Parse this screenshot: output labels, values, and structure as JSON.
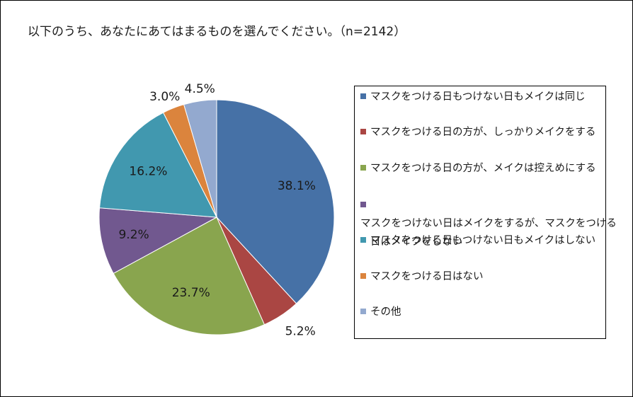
{
  "title": "以下のうち、あなたにあてはまるものを選んでください。（n=2142）",
  "chart_data": {
    "type": "pie",
    "title": "以下のうち、あなたにあてはまるものを選んでください。（n=2142）",
    "categories": [
      "マスクをつける日もつけない日もメイクは同じ",
      "マスクをつける日の方が、しっかりメイクをする",
      "マスクをつける日の方が、メイクは控えめにする",
      "マスクをつけない日はメイクをするが、マスクをつける日はメイクをしない",
      "マスクをつける日もつけない日もメイクはしない",
      "マスクをつける日はない",
      "その他"
    ],
    "values": [
      38.1,
      5.2,
      23.7,
      9.2,
      16.2,
      3.0,
      4.5
    ],
    "labels": [
      "38.1%",
      "5.2%",
      "23.7%",
      "9.2%",
      "16.2%",
      "3.0%",
      "4.5%"
    ],
    "colors": [
      "#4671A6",
      "#AA4643",
      "#89A54E",
      "#71588F",
      "#4198AF",
      "#DB843D",
      "#93A9CF"
    ],
    "legend_position": "right"
  },
  "legend": {
    "items": [
      {
        "lines": [
          "マスクをつける日もつけない日もメイクは同じ"
        ]
      },
      {
        "lines": [
          "マスクをつける日の方が、しっかりメイクをする"
        ]
      },
      {
        "lines": [
          "マスクをつける日の方が、メイクは控えめにする"
        ]
      },
      {
        "lines": [
          "マスクをつけない日はメイクをするが、マスクをつける",
          "日はメイクをしない"
        ]
      },
      {
        "lines": [
          "マスクをつける日もつけない日もメイクはしない"
        ]
      },
      {
        "lines": [
          "マスクをつける日はない"
        ]
      },
      {
        "lines": [
          "その他"
        ]
      }
    ]
  }
}
